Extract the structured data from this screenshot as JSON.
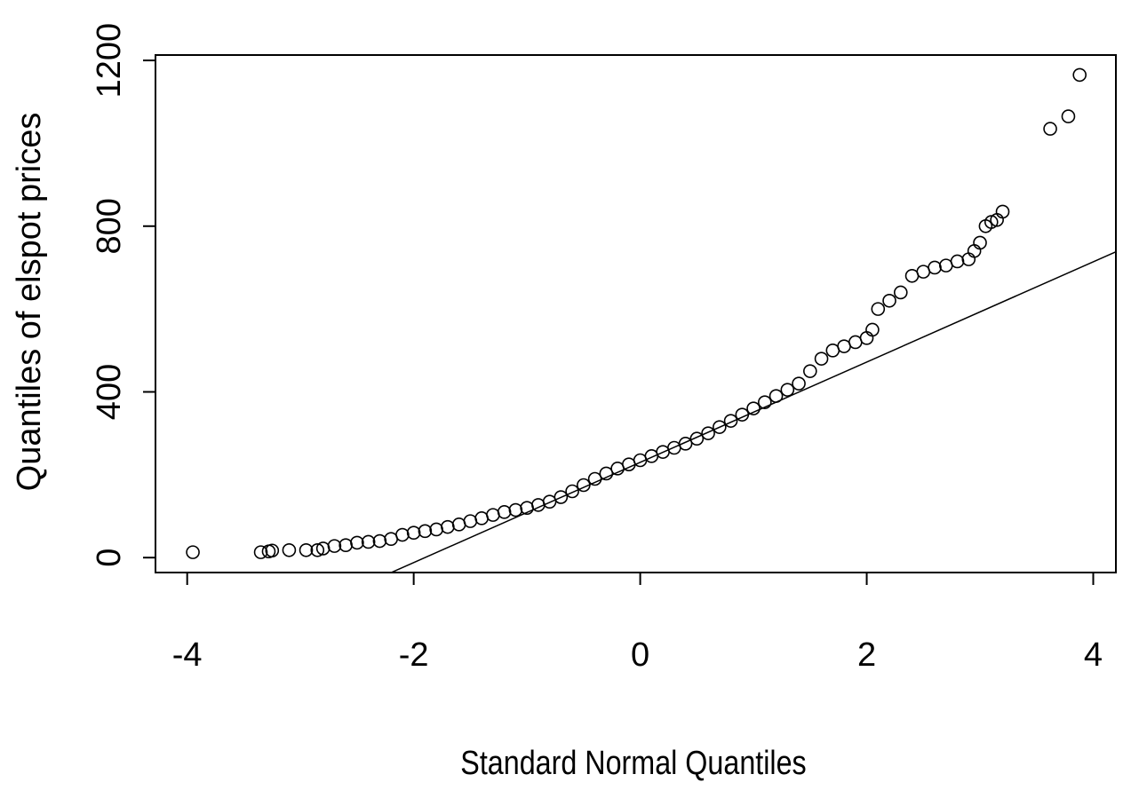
{
  "chart_data": {
    "type": "scatter",
    "xlabel": "Standard Normal Quantiles",
    "ylabel": "Quantiles of elspot prices",
    "xlim": [
      -4.28,
      4.2
    ],
    "ylim": [
      -36,
      1213
    ],
    "xticks": [
      -4,
      -2,
      0,
      2,
      4
    ],
    "yticks": [
      0,
      400,
      800,
      1200
    ],
    "color": "#000000",
    "qqline": {
      "intercept": 230,
      "slope": 121
    },
    "x": [
      -3.95,
      -3.35,
      -3.28,
      -3.25,
      -3.1,
      -2.95,
      -2.85,
      -2.8,
      -2.7,
      -2.6,
      -2.5,
      -2.4,
      -2.3,
      -2.2,
      -2.1,
      -2.0,
      -1.9,
      -1.8,
      -1.7,
      -1.6,
      -1.5,
      -1.4,
      -1.3,
      -1.2,
      -1.1,
      -1.0,
      -0.9,
      -0.8,
      -0.7,
      -0.6,
      -0.5,
      -0.4,
      -0.3,
      -0.2,
      -0.1,
      0,
      0.1,
      0.2,
      0.3,
      0.4,
      0.5,
      0.6,
      0.7,
      0.8,
      0.9,
      1.0,
      1.1,
      1.2,
      1.3,
      1.4,
      1.5,
      1.6,
      1.7,
      1.8,
      1.9,
      2.0,
      2.05,
      2.1,
      2.2,
      2.3,
      2.4,
      2.5,
      2.6,
      2.7,
      2.8,
      2.9,
      2.95,
      3.0,
      3.05,
      3.1,
      3.15,
      3.2,
      3.62,
      3.78,
      3.88
    ],
    "values": [
      13,
      13,
      15,
      17,
      18,
      18,
      18,
      22,
      28,
      30,
      36,
      38,
      40,
      45,
      55,
      60,
      64,
      68,
      74,
      80,
      88,
      95,
      103,
      110,
      115,
      120,
      127,
      135,
      146,
      160,
      175,
      190,
      203,
      215,
      225,
      235,
      245,
      255,
      265,
      275,
      287,
      300,
      315,
      330,
      345,
      360,
      375,
      390,
      405,
      420,
      450,
      480,
      500,
      510,
      520,
      530,
      550,
      600,
      620,
      640,
      680,
      690,
      700,
      705,
      715,
      720,
      740,
      760,
      800,
      810,
      815,
      835,
      1035,
      1065,
      1165
    ]
  }
}
